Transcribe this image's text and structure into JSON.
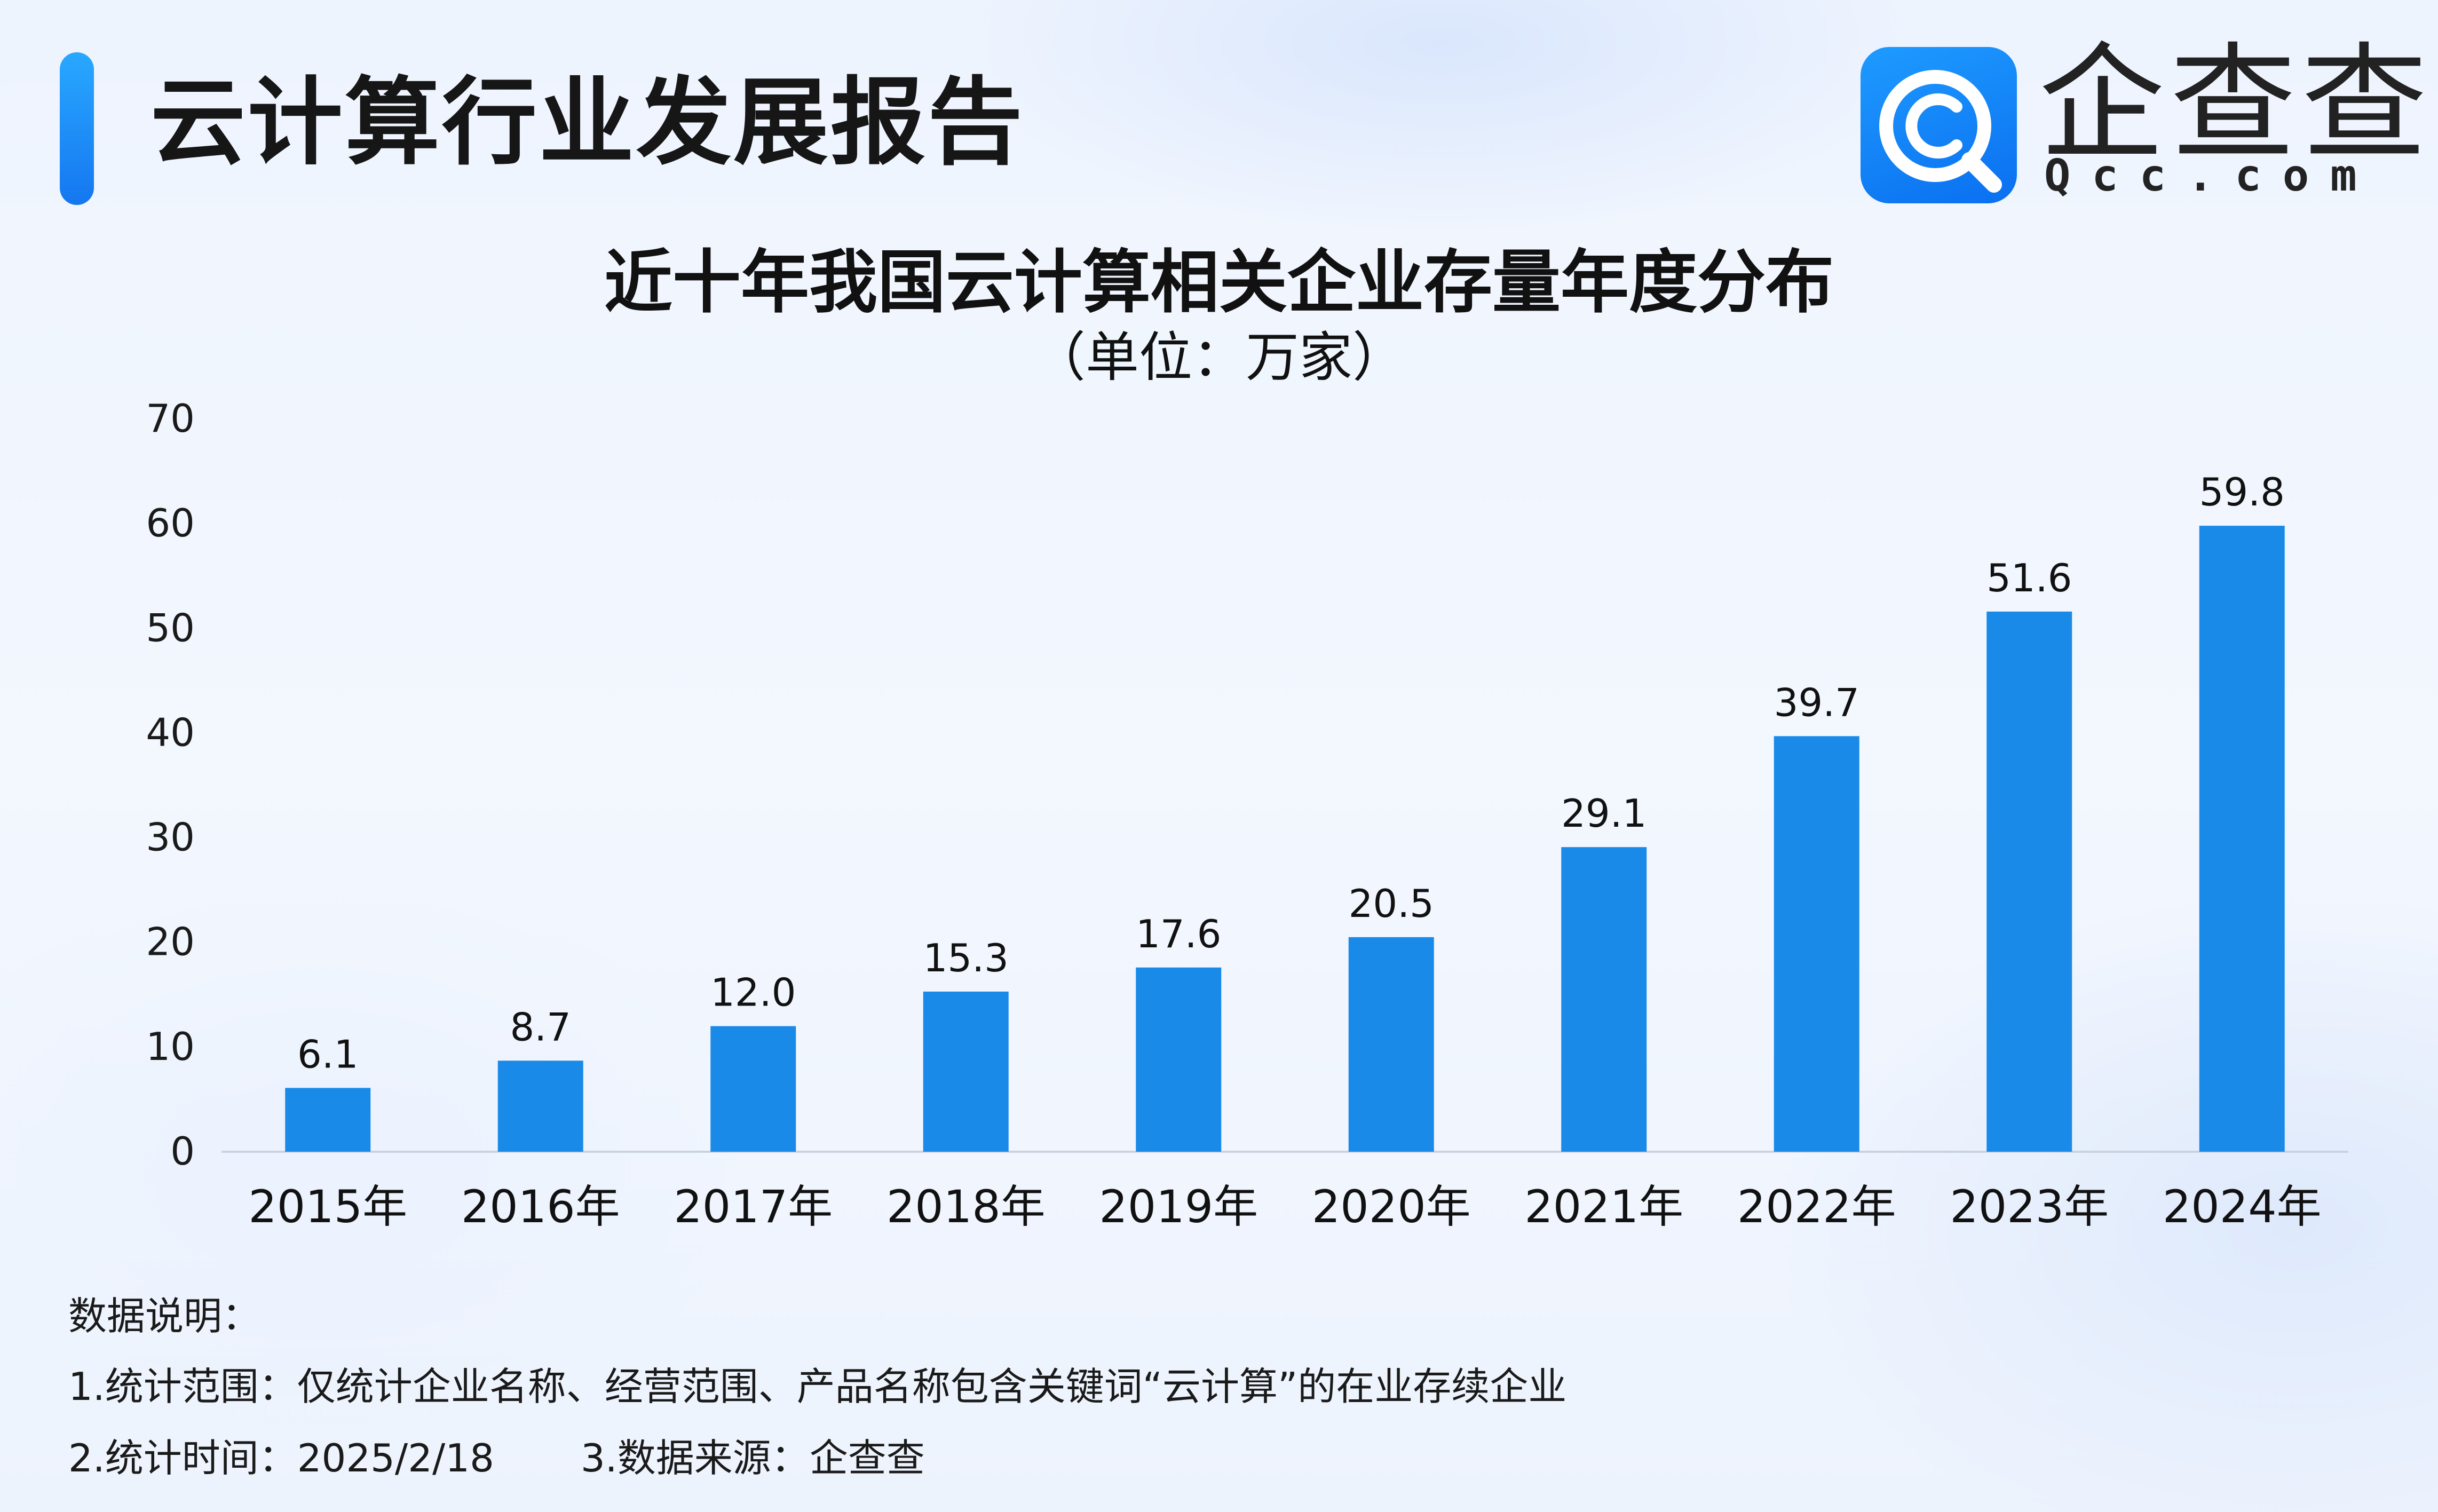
{
  "header": {
    "title": "云计算行业发展报告"
  },
  "logo": {
    "name": "企查查",
    "domain": "Qcc.com",
    "icon": "qcc-magnifier-icon",
    "color": "#1a8cff"
  },
  "chart_data": {
    "type": "bar",
    "title": "近十年我国云计算相关企业存量年度分布",
    "subtitle": "（单位：万家）",
    "xlabel": "",
    "ylabel": "",
    "categories": [
      "2015年",
      "2016年",
      "2017年",
      "2018年",
      "2019年",
      "2020年",
      "2021年",
      "2022年",
      "2023年",
      "2024年"
    ],
    "values": [
      6.1,
      8.7,
      12.0,
      15.3,
      17.6,
      20.5,
      29.1,
      39.7,
      51.6,
      59.8
    ],
    "value_labels": [
      "6.1",
      "8.7",
      "12.0",
      "15.3",
      "17.6",
      "20.5",
      "29.1",
      "39.7",
      "51.6",
      "59.8"
    ],
    "ylim": [
      0,
      70
    ],
    "yticks": [
      0,
      10,
      20,
      30,
      40,
      50,
      60,
      70
    ],
    "grid": false,
    "bar_color": "#1a8ae8",
    "axis_color": "#c9d3e0"
  },
  "notes": {
    "header": "数据说明：",
    "scope": "1.统计范围：仅统计企业名称、经营范围、产品名称包含关键词“云计算”的在业存续企业",
    "time": "2.统计时间：2025/2/18",
    "source": "3.数据来源：企查查"
  }
}
